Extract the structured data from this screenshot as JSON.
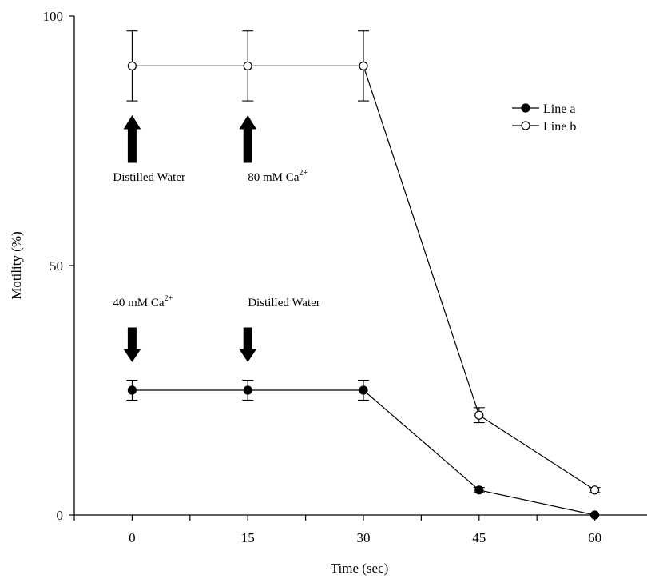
{
  "chart_data": {
    "type": "line",
    "title": "",
    "xlabel": "Time (sec)",
    "ylabel": "Motility (%)",
    "x": [
      0,
      15,
      30,
      45,
      60
    ],
    "x_ticks": [
      "0",
      "15",
      "30",
      "45",
      "60"
    ],
    "y_ticks": [
      "0",
      "50",
      "100"
    ],
    "xlim": [
      -7.5,
      67.5
    ],
    "ylim": [
      0,
      100
    ],
    "grid": false,
    "legend_position": "top-right",
    "series": [
      {
        "name": "Line a",
        "marker": "filled-circle",
        "values": [
          25,
          25,
          25,
          5,
          0
        ],
        "error": [
          2,
          2,
          2,
          0.5,
          0
        ]
      },
      {
        "name": "Line b",
        "marker": "open-circle",
        "values": [
          90,
          90,
          90,
          20,
          5
        ],
        "error": [
          7,
          7,
          7,
          1.5,
          0.5
        ]
      }
    ],
    "annotations": [
      {
        "text": "Distilled Water",
        "x": 0,
        "series": "Line b",
        "arrow": "up"
      },
      {
        "base": "80 mM Ca",
        "sup": "2+",
        "x": 15,
        "series": "Line b",
        "arrow": "up"
      },
      {
        "base": "40 mM Ca",
        "sup": "2+",
        "x": 0,
        "series": "Line a",
        "arrow": "down"
      },
      {
        "text": "Distilled Water",
        "x": 15,
        "series": "Line a",
        "arrow": "down"
      }
    ]
  }
}
